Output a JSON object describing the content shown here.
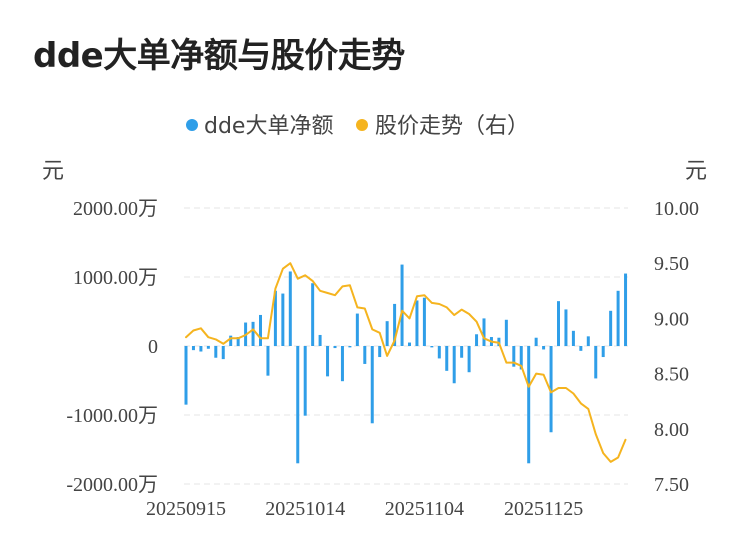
{
  "page": {
    "title": "dde大单净额与股价走势"
  },
  "chart_data": {
    "type": "bar+line",
    "legend": [
      {
        "label": "dde大单净额",
        "color": "#2f9ee8",
        "marker": "circle"
      },
      {
        "label": "股价走势（右）",
        "color": "#f5b41f",
        "marker": "circle"
      }
    ],
    "y_left": {
      "unit": "元",
      "range": [
        -2000,
        2000
      ],
      "ticks": [
        2000,
        1000,
        0,
        -1000,
        -2000
      ],
      "tick_labels": [
        "2000.00万",
        "1000.00万",
        "0",
        "-1000.00万",
        "-2000.00万"
      ]
    },
    "y_right": {
      "unit": "元",
      "range": [
        7.5,
        10.0
      ],
      "ticks": [
        10.0,
        9.5,
        9.0,
        8.5,
        8.0,
        7.5
      ],
      "tick_labels": [
        "10.00",
        "9.50",
        "9.00",
        "8.50",
        "8.00",
        "7.50"
      ]
    },
    "x_tick_labels": [
      {
        "index": 0,
        "label": "20250915"
      },
      {
        "index": 16,
        "label": "20251014"
      },
      {
        "index": 32,
        "label": "20251104"
      },
      {
        "index": 48,
        "label": "20251125"
      }
    ],
    "grid": true,
    "series": [
      {
        "name": "dde大单净额",
        "type": "bar",
        "axis": "left",
        "color": "#2f9ee8",
        "values": [
          -850,
          -60,
          -80,
          -40,
          -170,
          -190,
          150,
          130,
          340,
          350,
          450,
          -430,
          800,
          760,
          1080,
          -1700,
          -1010,
          910,
          160,
          -440,
          -30,
          -510,
          -20,
          470,
          -260,
          -1120,
          -160,
          360,
          610,
          1180,
          50,
          660,
          700,
          -20,
          -180,
          -360,
          -540,
          -170,
          -380,
          170,
          400,
          130,
          120,
          380,
          -300,
          -340,
          -1700,
          120,
          -50,
          -1250,
          650,
          530,
          220,
          -70,
          140,
          -470,
          -160,
          510,
          800,
          1050
        ]
      },
      {
        "name": "股价走势（右）",
        "type": "line",
        "axis": "right",
        "color": "#f5b41f",
        "values": [
          8.83,
          8.89,
          8.91,
          8.83,
          8.81,
          8.77,
          8.82,
          8.82,
          8.85,
          8.9,
          8.82,
          8.82,
          9.27,
          9.45,
          9.5,
          9.36,
          9.39,
          9.34,
          9.25,
          9.23,
          9.21,
          9.29,
          9.3,
          9.1,
          9.09,
          8.9,
          8.87,
          8.66,
          8.8,
          9.07,
          9.0,
          9.2,
          9.21,
          9.14,
          9.13,
          9.1,
          9.03,
          9.08,
          9.04,
          8.97,
          8.82,
          8.79,
          8.78,
          8.6,
          8.6,
          8.57,
          8.38,
          8.5,
          8.49,
          8.33,
          8.37,
          8.37,
          8.32,
          8.23,
          8.18,
          7.95,
          7.78,
          7.7,
          7.74,
          7.9
        ]
      }
    ]
  }
}
